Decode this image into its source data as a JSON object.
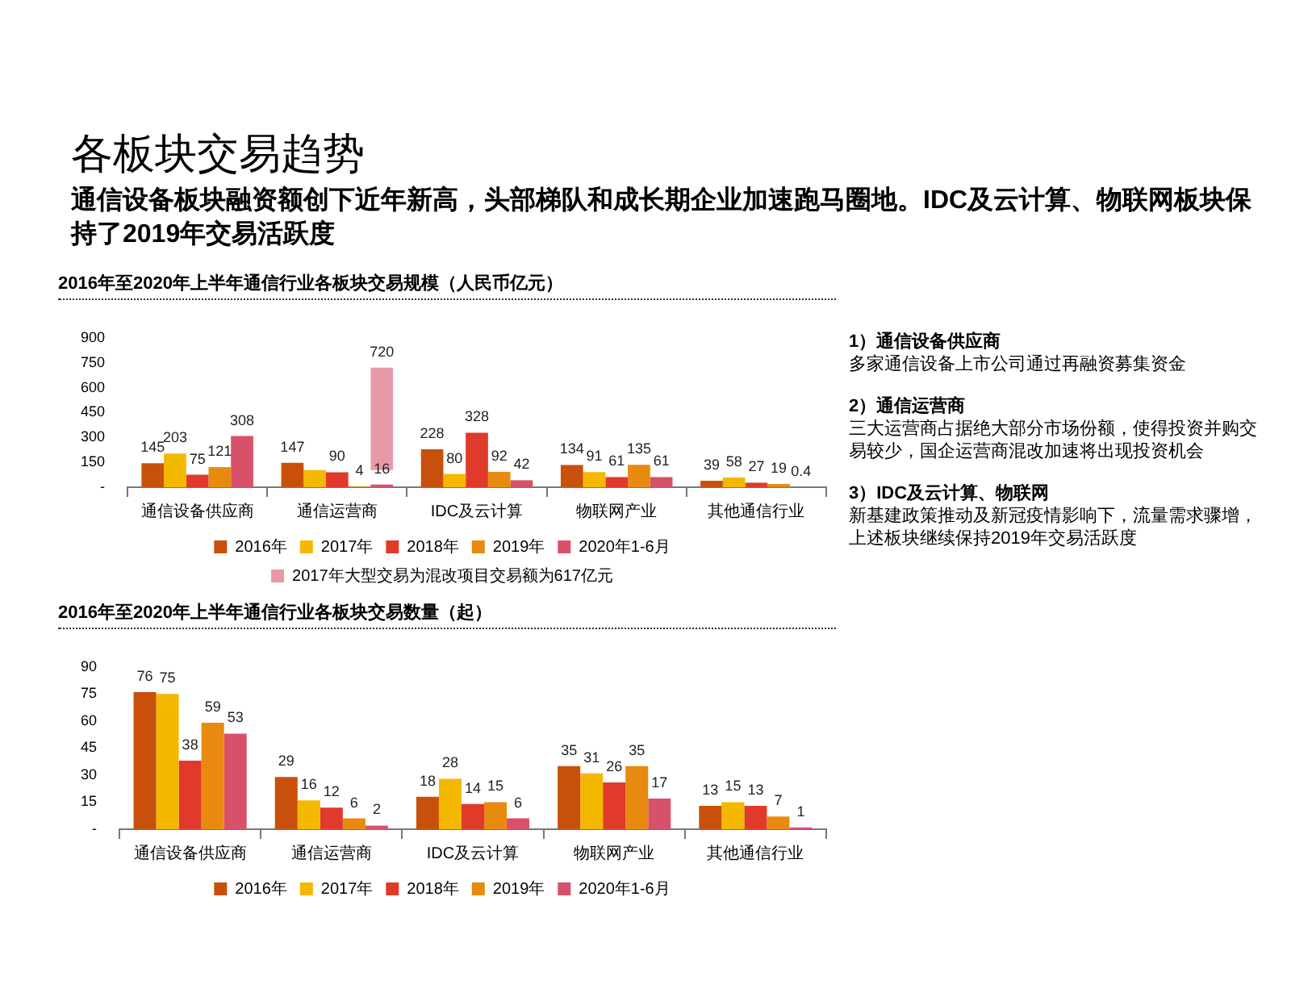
{
  "chart_data": [
    {
      "type": "other",
      "title": "各板块交易趋势",
      "subtitle": "通信设备板块融资额创下近年新高，头部梯队和成长期企业加速跑马圈地。IDC及云计算、物联网板块保持了2019年交易活跃度",
      "annotations": [
        "1）通信设备供应商",
        "多家通信设备上市公司通过再融资募集资金",
        "2）通信运营商",
        "三大运营商占据绝大部分市场份额，使得投资并购交易较少，国企运营商混改加速将出现投资机会",
        "3）IDC及云计算、物联网",
        "新基建政策推动及新冠疫情影响下，流量需求骤增，上述板块继续保持2019年交易活跃度"
      ]
    },
    {
      "type": "bar",
      "title": "2016年至2020年上半年通信行业各板块交易规模（人民币亿元）",
      "categories": [
        "通信设备供应商",
        "通信运营商",
        "IDC及云计算",
        "物联网产业",
        "其他通信行业"
      ],
      "series": [
        {
          "name": "2016年",
          "color": "#c8500a",
          "values": [
            145,
            147,
            228,
            134,
            39
          ],
          "value_labels": [
            "145",
            "147",
            "228",
            "134",
            "39"
          ]
        },
        {
          "name": "2017年",
          "color": "#f5b800",
          "values": [
            203,
            103,
            80,
            91,
            58
          ],
          "value_labels": [
            "203",
            null,
            "80",
            "91",
            "58"
          ]
        },
        {
          "name": "2018年",
          "color": "#e03a2a",
          "values": [
            75,
            90,
            328,
            61,
            27
          ],
          "value_labels": [
            "75",
            "90",
            "328",
            "61",
            "27"
          ]
        },
        {
          "name": "2019年",
          "color": "#e88a10",
          "values": [
            121,
            4,
            92,
            135,
            19
          ],
          "value_labels": [
            "121",
            "4",
            "92",
            "135",
            "19"
          ]
        },
        {
          "name": "2020年1-6月",
          "color": "#d9506a",
          "values": [
            308,
            16,
            42,
            61,
            0.4
          ],
          "value_labels": [
            "308",
            "16",
            "42",
            "61",
            "0.4"
          ]
        },
        {
          "name": "2017年大型交易为混改项目交易额为617亿元",
          "color": "#e899a8",
          "values": [
            null,
            617,
            null,
            null,
            null
          ],
          "base": [
            null,
            103,
            null,
            null,
            null
          ],
          "value_labels": [
            null,
            "720",
            null,
            null,
            null
          ]
        }
      ],
      "ylim": [
        0,
        900
      ],
      "yticks": [
        {
          "value": 0,
          "label": "-"
        },
        150,
        300,
        450,
        600,
        750,
        900
      ],
      "legend": "bottom"
    },
    {
      "type": "bar",
      "title": "2016年至2020年上半年通信行业各板块交易数量（起）",
      "categories": [
        "通信设备供应商",
        "通信运营商",
        "IDC及云计算",
        "物联网产业",
        "其他通信行业"
      ],
      "series": [
        {
          "name": "2016年",
          "color": "#c8500a",
          "values": [
            76,
            29,
            18,
            35,
            13
          ]
        },
        {
          "name": "2017年",
          "color": "#f5b800",
          "values": [
            75,
            16,
            28,
            31,
            15
          ]
        },
        {
          "name": "2018年",
          "color": "#e03a2a",
          "values": [
            38,
            12,
            14,
            26,
            13
          ]
        },
        {
          "name": "2019年",
          "color": "#e88a10",
          "values": [
            59,
            6,
            15,
            35,
            7
          ]
        },
        {
          "name": "2020年1-6月",
          "color": "#d9506a",
          "values": [
            53,
            2,
            6,
            17,
            1
          ]
        }
      ],
      "data_labels": true,
      "ylim": [
        0,
        90
      ],
      "yticks": [
        {
          "value": 0,
          "label": "-"
        },
        15,
        30,
        45,
        60,
        75,
        90
      ],
      "legend": "bottom"
    }
  ]
}
